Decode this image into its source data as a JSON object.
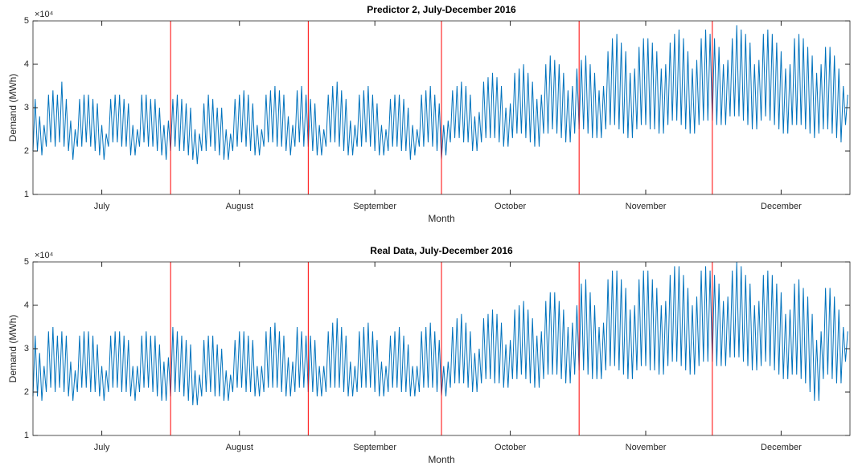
{
  "chart_data": [
    {
      "type": "line",
      "title": "Predictor 2, July-December 2016",
      "xlabel": "Month",
      "ylabel": "Demand (MWh)",
      "y_multiplier": "×10⁴",
      "color": "#0072bd",
      "xlim": [
        0,
        368
      ],
      "ylim": [
        1,
        5
      ],
      "yticks": [
        1,
        2,
        3,
        4,
        5
      ],
      "xticks": [
        {
          "value": 31,
          "label": "July"
        },
        {
          "value": 93,
          "label": "August"
        },
        {
          "value": 154,
          "label": "September"
        },
        {
          "value": 215,
          "label": "October"
        },
        {
          "value": 276,
          "label": "November"
        },
        {
          "value": 337,
          "label": "December"
        }
      ],
      "vlines": [
        62,
        124,
        184,
        246,
        306
      ],
      "vline_color": "#ff0000",
      "values": [
        2.0,
        3.2,
        2.0,
        2.8,
        1.9,
        2.6,
        2.1,
        3.3,
        2.2,
        3.4,
        2.1,
        3.3,
        2.2,
        3.6,
        2.1,
        3.2,
        2.0,
        2.7,
        1.8,
        2.5,
        2.1,
        3.2,
        2.1,
        3.3,
        2.2,
        3.3,
        2.1,
        3.2,
        2.0,
        3.1,
        1.9,
        2.6,
        1.8,
        2.4,
        2.1,
        3.2,
        2.2,
        3.3,
        2.2,
        3.3,
        2.1,
        3.2,
        2.1,
        3.1,
        1.9,
        2.6,
        1.9,
        2.5,
        2.1,
        3.3,
        2.2,
        3.3,
        2.1,
        3.2,
        2.1,
        3.2,
        2.0,
        3.0,
        1.9,
        2.6,
        1.8,
        2.7,
        2.0,
        3.2,
        2.1,
        3.3,
        2.0,
        3.2,
        2.0,
        3.1,
        1.9,
        3.0,
        1.8,
        2.5,
        1.7,
        2.4,
        2.0,
        3.1,
        2.0,
        3.3,
        2.1,
        3.2,
        2.0,
        3.0,
        1.9,
        3.0,
        1.8,
        2.5,
        1.8,
        2.4,
        2.0,
        3.2,
        2.1,
        3.3,
        2.2,
        3.4,
        2.1,
        3.3,
        2.0,
        3.1,
        1.9,
        2.6,
        1.9,
        2.5,
        2.1,
        3.3,
        2.2,
        3.4,
        2.2,
        3.5,
        2.1,
        3.4,
        2.1,
        3.3,
        2.0,
        2.8,
        1.9,
        2.6,
        2.1,
        3.4,
        2.2,
        3.5,
        2.1,
        3.3,
        2.1,
        3.2,
        2.0,
        3.1,
        1.9,
        2.6,
        1.9,
        2.5,
        2.1,
        3.3,
        2.2,
        3.5,
        2.2,
        3.6,
        2.1,
        3.4,
        2.0,
        3.2,
        1.9,
        2.7,
        1.9,
        2.6,
        2.1,
        3.3,
        2.1,
        3.4,
        2.2,
        3.5,
        2.1,
        3.3,
        2.0,
        3.1,
        1.9,
        2.6,
        1.9,
        2.5,
        2.0,
        3.2,
        2.1,
        3.3,
        2.1,
        3.3,
        2.0,
        3.2,
        2.0,
        3.0,
        1.8,
        2.6,
        1.9,
        2.5,
        2.1,
        3.3,
        2.1,
        3.4,
        2.2,
        3.5,
        2.1,
        3.3,
        2.0,
        3.1,
        1.8,
        2.6,
        1.9,
        2.7,
        2.2,
        3.4,
        2.3,
        3.5,
        2.3,
        3.6,
        2.2,
        3.5,
        2.2,
        3.3,
        2.0,
        2.8,
        2.0,
        2.9,
        2.2,
        3.6,
        2.3,
        3.7,
        2.3,
        3.8,
        2.3,
        3.7,
        2.2,
        3.5,
        2.1,
        3.0,
        2.1,
        3.1,
        2.3,
        3.8,
        2.4,
        3.9,
        2.4,
        4.0,
        2.3,
        3.8,
        2.2,
        3.6,
        2.1,
        3.2,
        2.1,
        3.3,
        2.4,
        4.0,
        2.4,
        4.2,
        2.5,
        4.1,
        2.4,
        4.0,
        2.3,
        3.8,
        2.2,
        3.4,
        2.2,
        3.5,
        2.4,
        3.9,
        2.5,
        4.1,
        2.5,
        4.2,
        2.4,
        4.0,
        2.3,
        3.8,
        2.3,
        3.4,
        2.3,
        3.5,
        2.5,
        4.3,
        2.6,
        4.6,
        2.6,
        4.7,
        2.5,
        4.5,
        2.4,
        4.3,
        2.3,
        3.8,
        2.3,
        3.9,
        2.5,
        4.4,
        2.6,
        4.6,
        2.6,
        4.6,
        2.5,
        4.5,
        2.5,
        4.3,
        2.4,
        3.9,
        2.4,
        4.0,
        2.6,
        4.5,
        2.7,
        4.7,
        2.7,
        4.8,
        2.6,
        4.6,
        2.5,
        4.3,
        2.4,
        3.9,
        2.4,
        4.1,
        2.6,
        4.6,
        2.7,
        4.8,
        2.7,
        4.7,
        2.7,
        4.6,
        2.6,
        4.4,
        2.6,
        4.0,
        2.6,
        4.1,
        2.8,
        4.6,
        2.8,
        4.9,
        2.8,
        4.8,
        2.7,
        4.7,
        2.6,
        4.5,
        2.5,
        4.0,
        2.5,
        4.1,
        2.7,
        4.7,
        2.8,
        4.8,
        2.7,
        4.7,
        2.6,
        4.5,
        2.5,
        4.3,
        2.4,
        3.9,
        2.4,
        4.0,
        2.6,
        4.6,
        2.6,
        4.7,
        2.6,
        4.6,
        2.5,
        4.4,
        2.4,
        4.2,
        2.3,
        3.8,
        2.4,
        4.0,
        2.5,
        4.4,
        2.5,
        4.4,
        2.4,
        4.2,
        2.3,
        3.9,
        2.2,
        3.5,
        2.6,
        3.3
      ]
    },
    {
      "type": "line",
      "title": "Real Data, July-December 2016",
      "xlabel": "Month",
      "ylabel": "Demand (MWh)",
      "y_multiplier": "×10⁴",
      "color": "#0072bd",
      "xlim": [
        0,
        368
      ],
      "ylim": [
        1,
        5
      ],
      "yticks": [
        1,
        2,
        3,
        4,
        5
      ],
      "xticks": [
        {
          "value": 31,
          "label": "July"
        },
        {
          "value": 93,
          "label": "August"
        },
        {
          "value": 154,
          "label": "September"
        },
        {
          "value": 215,
          "label": "October"
        },
        {
          "value": 276,
          "label": "November"
        },
        {
          "value": 337,
          "label": "December"
        }
      ],
      "vlines": [
        62,
        124,
        184,
        246,
        306
      ],
      "vline_color": "#ff0000",
      "values": [
        1.9,
        3.3,
        1.9,
        2.9,
        1.8,
        2.6,
        2.0,
        3.4,
        2.1,
        3.5,
        2.0,
        3.3,
        2.1,
        3.4,
        2.0,
        3.3,
        1.9,
        2.7,
        1.8,
        2.5,
        2.0,
        3.3,
        2.1,
        3.4,
        2.1,
        3.4,
        2.0,
        3.3,
        2.0,
        3.1,
        1.9,
        2.6,
        1.8,
        2.5,
        2.0,
        3.3,
        2.1,
        3.4,
        2.1,
        3.4,
        2.0,
        3.3,
        2.0,
        3.2,
        1.9,
        2.6,
        1.8,
        2.6,
        2.0,
        3.3,
        2.1,
        3.4,
        2.1,
        3.3,
        2.0,
        3.3,
        1.9,
        3.1,
        1.8,
        2.7,
        1.8,
        2.8,
        1.9,
        3.5,
        2.0,
        3.4,
        2.0,
        3.3,
        1.9,
        3.2,
        1.8,
        3.1,
        1.7,
        2.5,
        1.7,
        2.4,
        1.9,
        3.2,
        2.0,
        3.3,
        2.0,
        3.3,
        1.9,
        3.1,
        1.9,
        3.0,
        1.8,
        2.5,
        1.8,
        2.4,
        2.0,
        3.2,
        2.1,
        3.4,
        2.1,
        3.4,
        2.0,
        3.3,
        2.0,
        3.2,
        1.9,
        2.6,
        1.9,
        2.6,
        2.0,
        3.4,
        2.1,
        3.5,
        2.1,
        3.6,
        2.1,
        3.4,
        2.0,
        3.3,
        1.9,
        2.8,
        1.9,
        2.7,
        2.0,
        3.5,
        2.1,
        3.4,
        2.1,
        3.3,
        2.0,
        3.3,
        2.0,
        3.2,
        1.9,
        2.6,
        1.9,
        2.6,
        2.0,
        3.4,
        2.1,
        3.6,
        2.1,
        3.7,
        2.1,
        3.5,
        2.0,
        3.3,
        1.9,
        2.7,
        1.9,
        2.6,
        2.0,
        3.4,
        2.1,
        3.5,
        2.1,
        3.6,
        2.1,
        3.4,
        2.0,
        3.2,
        1.9,
        2.7,
        1.9,
        2.6,
        2.0,
        3.3,
        2.1,
        3.4,
        2.1,
        3.5,
        2.0,
        3.3,
        2.0,
        3.1,
        1.9,
        2.6,
        1.9,
        2.6,
        2.0,
        3.4,
        2.1,
        3.5,
        2.1,
        3.6,
        2.1,
        3.4,
        2.0,
        3.2,
        1.9,
        2.6,
        1.9,
        2.7,
        2.1,
        3.5,
        2.2,
        3.7,
        2.2,
        3.8,
        2.2,
        3.6,
        2.1,
        3.4,
        2.0,
        2.9,
        2.0,
        3.0,
        2.2,
        3.7,
        2.3,
        3.8,
        2.3,
        3.9,
        2.2,
        3.8,
        2.2,
        3.6,
        2.1,
        3.1,
        2.1,
        3.2,
        2.3,
        3.9,
        2.3,
        4.0,
        2.4,
        4.1,
        2.3,
        3.9,
        2.2,
        3.7,
        2.1,
        3.3,
        2.1,
        3.4,
        2.3,
        4.1,
        2.4,
        4.3,
        2.4,
        4.3,
        2.4,
        4.1,
        2.3,
        3.9,
        2.2,
        3.5,
        2.2,
        3.6,
        2.4,
        4.0,
        2.5,
        4.5,
        2.5,
        4.6,
        2.4,
        4.3,
        2.3,
        4.0,
        2.3,
        3.5,
        2.3,
        3.6,
        2.5,
        4.6,
        2.6,
        4.8,
        2.6,
        4.8,
        2.5,
        4.6,
        2.4,
        4.4,
        2.3,
        3.9,
        2.3,
        4.0,
        2.5,
        4.6,
        2.6,
        4.8,
        2.6,
        4.8,
        2.5,
        4.6,
        2.5,
        4.4,
        2.4,
        4.0,
        2.4,
        4.1,
        2.6,
        4.7,
        2.7,
        4.9,
        2.7,
        4.9,
        2.6,
        4.7,
        2.5,
        4.4,
        2.4,
        4.0,
        2.4,
        4.2,
        2.6,
        4.8,
        2.7,
        4.9,
        2.7,
        4.8,
        2.7,
        4.7,
        2.6,
        4.5,
        2.6,
        4.1,
        2.6,
        4.2,
        2.8,
        4.8,
        2.8,
        5.0,
        2.8,
        4.9,
        2.7,
        4.7,
        2.6,
        4.5,
        2.5,
        4.0,
        2.5,
        4.1,
        2.6,
        4.7,
        2.7,
        4.8,
        2.6,
        4.7,
        2.5,
        4.5,
        2.4,
        4.3,
        2.3,
        3.8,
        2.3,
        3.9,
        2.4,
        4.5,
        2.4,
        4.6,
        2.3,
        4.4,
        2.2,
        4.2,
        2.0,
        3.8,
        1.8,
        3.2,
        1.8,
        3.4,
        2.3,
        4.4,
        2.4,
        4.4,
        2.3,
        4.2,
        2.2,
        3.9,
        2.2,
        3.5,
        2.7,
        3.4
      ]
    }
  ]
}
